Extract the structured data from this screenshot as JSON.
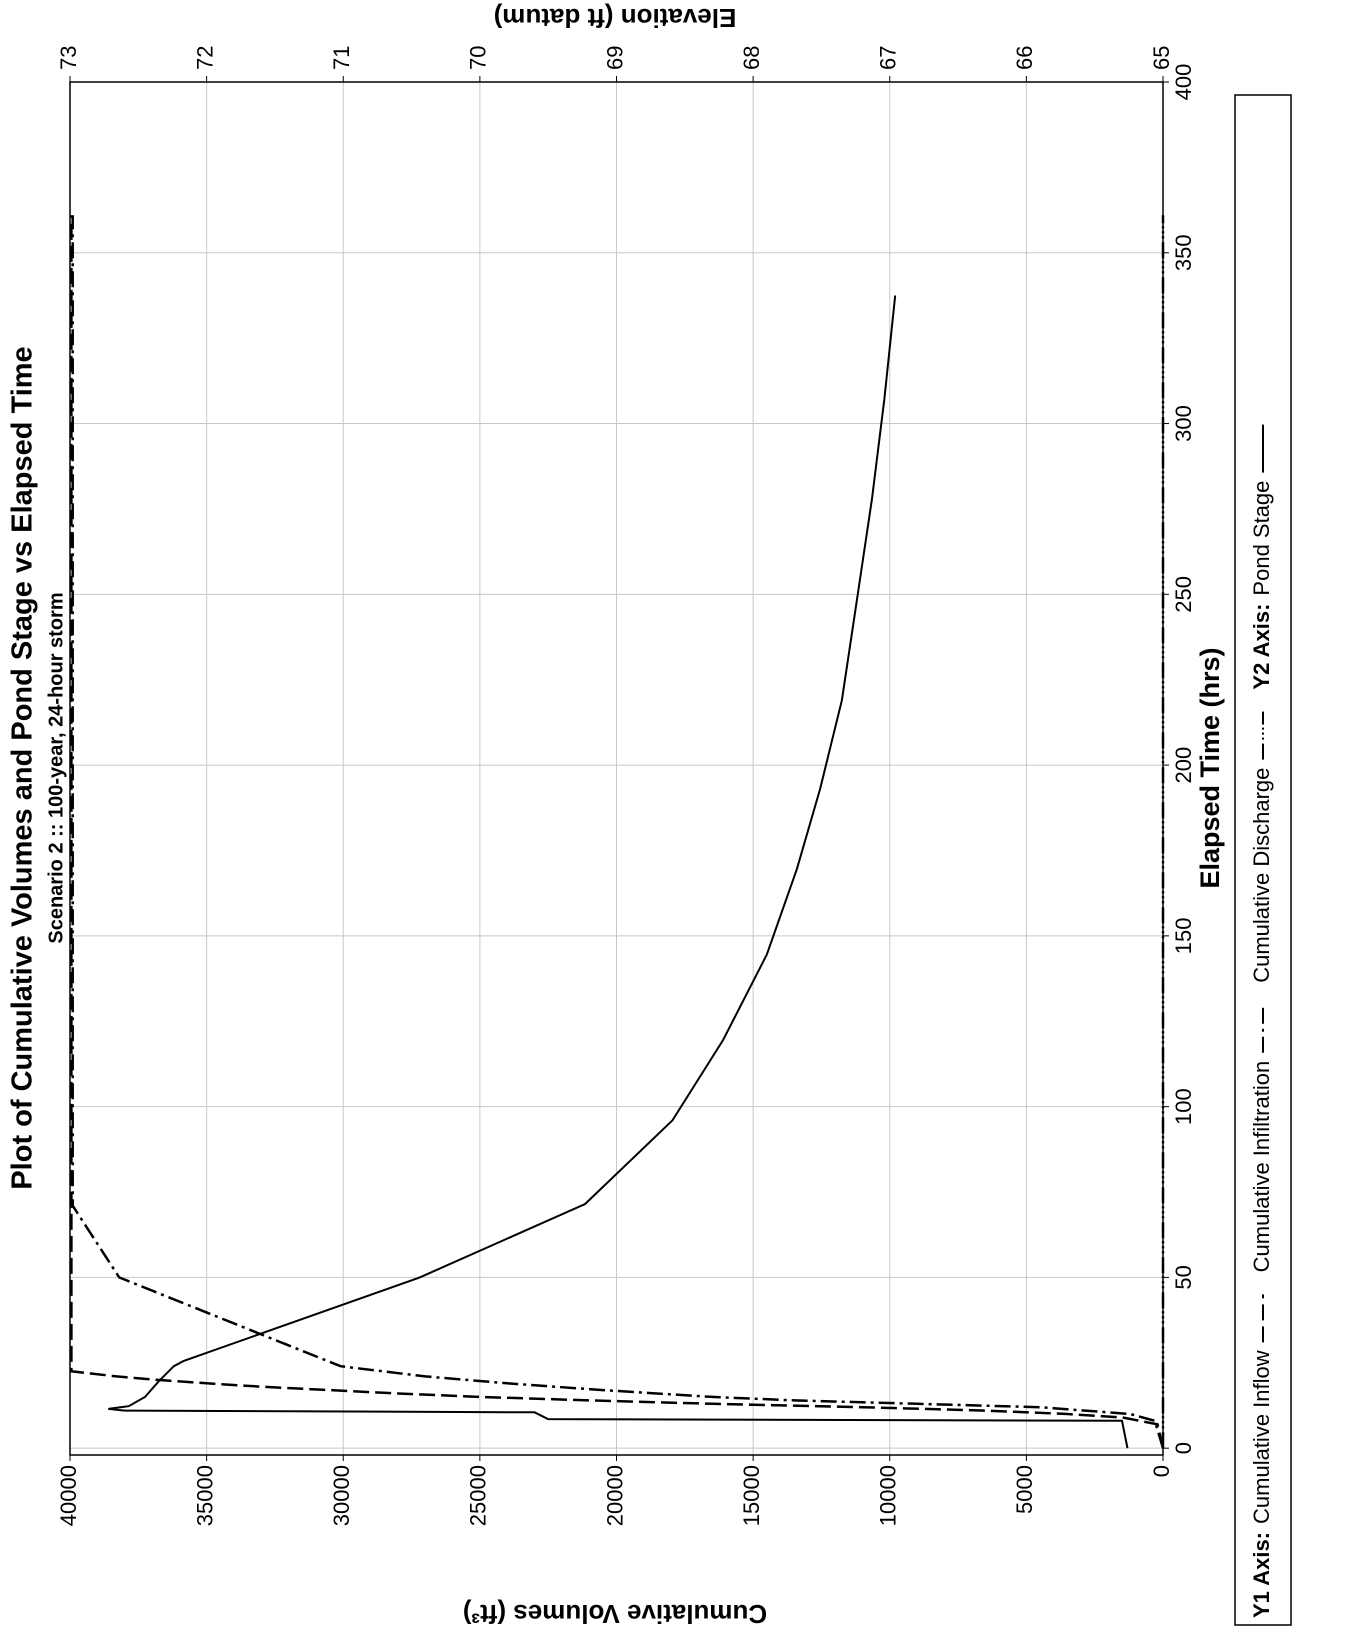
{
  "chart_data": {
    "type": "line",
    "title": "Plot of Cumulative Volumes and Pond Stage vs Elapsed Time",
    "subtitle": "Scenario 2 :: 100-year, 24-hour storm",
    "x_label": "Elapsed Time (hrs)",
    "y_label": "Cumulative Volumes (ft³)",
    "y2_label": "Elevation (ft datum)",
    "legend_y1_label": "Y1 Axis:",
    "legend_y2_label": "Y2 Axis:",
    "xlim": [
      -2,
      400
    ],
    "xticks": [
      0,
      50,
      100,
      150,
      200,
      250,
      300,
      350,
      400
    ],
    "ylim": [
      0,
      40000
    ],
    "yticks": [
      0,
      5000,
      10000,
      15000,
      20000,
      25000,
      30000,
      35000,
      40000
    ],
    "y2lim": [
      65,
      73
    ],
    "y2ticks": [
      65,
      66,
      67,
      68,
      69,
      70,
      71,
      72,
      73
    ],
    "grid": true,
    "legend": "bottom",
    "series": [
      {
        "name": "Cumulative Inflow",
        "color": "#000000",
        "style": "dashed",
        "x": [
          0,
          7,
          9,
          10,
          11,
          12,
          13,
          14,
          15,
          16,
          17,
          18,
          19,
          20,
          21,
          22.5,
          361
        ],
        "values": [
          0,
          200,
          1500,
          3500,
          6500,
          11000,
          16500,
          21000,
          25000,
          28000,
          30500,
          33000,
          35000,
          36800,
          38300,
          39950,
          39950
        ]
      },
      {
        "name": "Cumulative Infiltration",
        "color": "#000000",
        "style": "dash-dot",
        "x": [
          0,
          8,
          10,
          12,
          13,
          14,
          15,
          17,
          19,
          21,
          24,
          50,
          71,
          361
        ],
        "values": [
          0,
          300,
          1200,
          4500,
          9000,
          13500,
          16500,
          20500,
          24000,
          27000,
          30100,
          38200,
          39900,
          39900
        ]
      },
      {
        "name": "Cumulative Discharge",
        "color": "#000000",
        "style": "dash-dot-dot",
        "x": [
          0,
          361
        ],
        "values": [
          0,
          0
        ]
      },
      {
        "name": "Pond Stage",
        "color": "#000000",
        "style": "solid",
        "axis": "y2",
        "x": [
          0,
          8,
          8.5,
          10.5,
          11,
          11.5,
          12.3,
          15,
          19.6,
          24,
          25.5,
          50,
          71.5,
          96,
          119.5,
          144.5,
          169.5,
          193,
          219,
          248.5,
          278,
          307,
          337.5
        ],
        "values": [
          65.26,
          65.3,
          69.5,
          69.6,
          72.6,
          72.72,
          72.57,
          72.45,
          72.35,
          72.24,
          72.17,
          70.44,
          69.23,
          68.59,
          68.22,
          67.9,
          67.68,
          67.51,
          67.35,
          67.24,
          67.13,
          67.04,
          66.96
        ]
      }
    ]
  }
}
